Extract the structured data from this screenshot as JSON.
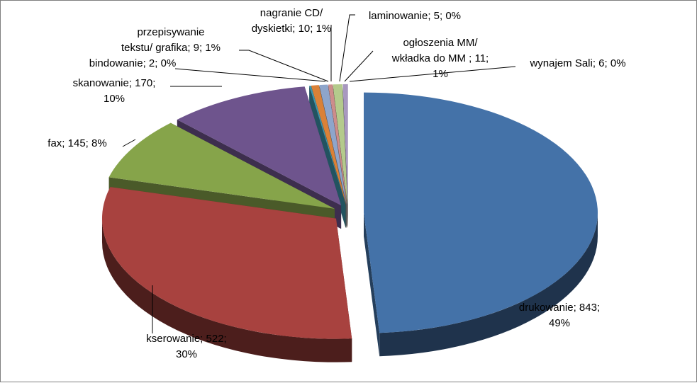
{
  "chart_data": {
    "type": "pie",
    "three_d": true,
    "exploded": true,
    "legend": "none",
    "data_labels": "category; value; percent",
    "slices": [
      {
        "name": "drukowanie",
        "value": 843,
        "percent": "49%",
        "label_lines": [
          "drukowanie; 843;",
          "49%"
        ],
        "color": "#4472A8"
      },
      {
        "name": "kserowanie",
        "value": 522,
        "percent": "30%",
        "label_lines": [
          "kserowanie; 522;",
          "30%"
        ],
        "color": "#A8423F"
      },
      {
        "name": "fax",
        "value": 145,
        "percent": "8%",
        "label_lines": [
          "fax; 145; 8%"
        ],
        "color": "#86A44A"
      },
      {
        "name": "skanowanie",
        "value": 170,
        "percent": "10%",
        "label_lines": [
          "skanowanie; 170;",
          "10%"
        ],
        "color": "#6E548D"
      },
      {
        "name": "bindowanie",
        "value": 2,
        "percent": "0%",
        "label_lines": [
          "bindowanie; 2; 0%"
        ],
        "color": "#3D96AE"
      },
      {
        "name": "przepisywanie tekstu/ grafika",
        "value": 9,
        "percent": "1%",
        "label_lines": [
          "przepisywanie",
          "tekstu/ grafika; 9; 1%"
        ],
        "color": "#DA8137"
      },
      {
        "name": "nagranie CD/ dyskietki",
        "value": 10,
        "percent": "1%",
        "label_lines": [
          "nagranie CD/",
          "dyskietki; 10; 1%"
        ],
        "color": "#8EA5CB"
      },
      {
        "name": "laminowanie",
        "value": 5,
        "percent": "0%",
        "label_lines": [
          "laminowanie; 5; 0%"
        ],
        "color": "#CD8C8B"
      },
      {
        "name": "ogłoszenia MM/ wkładka do MM",
        "value": 11,
        "percent": "1%",
        "label_lines": [
          "ogłoszenia MM/",
          "wkładka do MM ; 11;",
          "1%"
        ],
        "color": "#B4CA8C"
      },
      {
        "name": "wynajem Sali",
        "value": 6,
        "percent": "0%",
        "label_lines": [
          "wynajem Sali; 6; 0%"
        ],
        "color": "#A898BF"
      }
    ]
  }
}
